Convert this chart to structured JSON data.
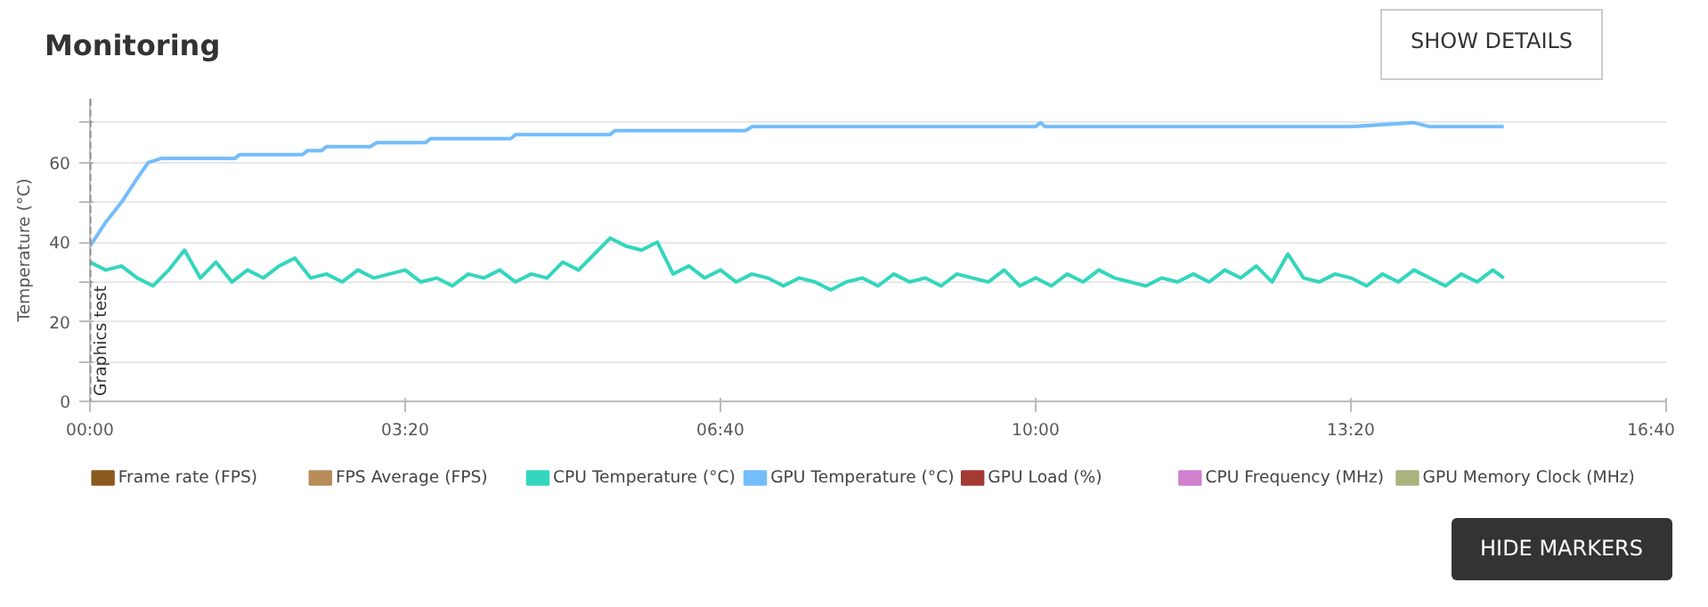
{
  "chart_data": {
    "type": "line",
    "title": "Monitoring",
    "ylabel": "Temperature (°C)",
    "annotations": [
      "SHOW DETAILS",
      "HIDE MARKERS"
    ],
    "xlim": [
      0,
      1000
    ],
    "ylim": [
      0,
      76
    ],
    "xticks": [
      {
        "value": 0,
        "label": "00:00"
      },
      {
        "value": 200,
        "label": "03:20"
      },
      {
        "value": 400,
        "label": "06:40"
      },
      {
        "value": 600,
        "label": "10:00"
      },
      {
        "value": 800,
        "label": "13:20"
      },
      {
        "value": 1000,
        "label": "16:40"
      }
    ],
    "yticks": [
      0,
      {
        "value": 10,
        "label": null
      },
      20,
      {
        "value": 30,
        "label": null
      },
      40,
      {
        "value": 50,
        "label": null
      },
      60,
      {
        "value": 70,
        "label": null
      }
    ],
    "grid": "y",
    "legend": "bottom",
    "ref_lines": [
      {
        "axis": "x",
        "value": 0,
        "label": "Graphics test",
        "color": "#888888",
        "line_style": "dashed"
      }
    ],
    "series": [
      {
        "name": "Frame rate (FPS)",
        "color": "#8b5a1e"
      },
      {
        "name": "FPS Average (FPS)",
        "color": "#b88c5a"
      },
      {
        "name": "CPU Temperature (°C)",
        "color": "#33d6bd",
        "x": [
          0,
          10,
          20,
          30,
          40,
          50,
          60,
          70,
          80,
          90,
          100,
          110,
          120,
          130,
          140,
          150,
          160,
          170,
          180,
          190,
          200,
          210,
          220,
          230,
          240,
          250,
          260,
          270,
          280,
          290,
          300,
          310,
          320,
          330,
          340,
          350,
          360,
          370,
          380,
          390,
          400,
          410,
          420,
          430,
          440,
          450,
          460,
          470,
          480,
          490,
          500,
          510,
          520,
          530,
          540,
          550,
          560,
          570,
          580,
          590,
          600,
          610,
          620,
          630,
          640,
          650,
          660,
          670,
          680,
          690,
          700,
          710,
          720,
          730,
          740,
          750,
          760,
          770,
          780,
          790,
          800,
          810,
          820,
          830,
          840,
          850,
          860,
          870,
          880,
          890,
          897
        ],
        "values": [
          35,
          33,
          34,
          31,
          29,
          33,
          38,
          31,
          35,
          30,
          33,
          31,
          34,
          36,
          31,
          32,
          30,
          33,
          31,
          32,
          33,
          30,
          31,
          29,
          32,
          31,
          33,
          30,
          32,
          31,
          35,
          33,
          37,
          41,
          39,
          38,
          40,
          32,
          34,
          31,
          33,
          30,
          32,
          31,
          29,
          31,
          30,
          28,
          30,
          31,
          29,
          32,
          30,
          31,
          29,
          32,
          31,
          30,
          33,
          29,
          31,
          29,
          32,
          30,
          33,
          31,
          30,
          29,
          31,
          30,
          32,
          30,
          33,
          31,
          34,
          30,
          37,
          31,
          30,
          32,
          31,
          29,
          32,
          30,
          33,
          31,
          29,
          32,
          30,
          33,
          31
        ]
      },
      {
        "name": "GPU Temperature (°C)",
        "color": "#74bdfb",
        "x": [
          0,
          10,
          20,
          30,
          37,
          45,
          92,
          95,
          135,
          138,
          147,
          150,
          178,
          182,
          213,
          216,
          267,
          270,
          330,
          333,
          416,
          420,
          600,
          603,
          606,
          800,
          840,
          850,
          897
        ],
        "values": [
          39,
          45,
          50,
          56,
          60,
          61,
          61,
          62,
          62,
          63,
          63,
          64,
          64,
          65,
          65,
          66,
          66,
          67,
          67,
          68,
          68,
          69,
          69,
          70,
          69,
          69,
          70,
          69,
          69
        ]
      },
      {
        "name": "GPU Load (%)",
        "color": "#a33a34"
      },
      {
        "name": "CPU Frequency (MHz)",
        "color": "#cf80cf"
      },
      {
        "name": "GPU Memory Clock (MHz)",
        "color": "#a9b37f"
      }
    ]
  }
}
